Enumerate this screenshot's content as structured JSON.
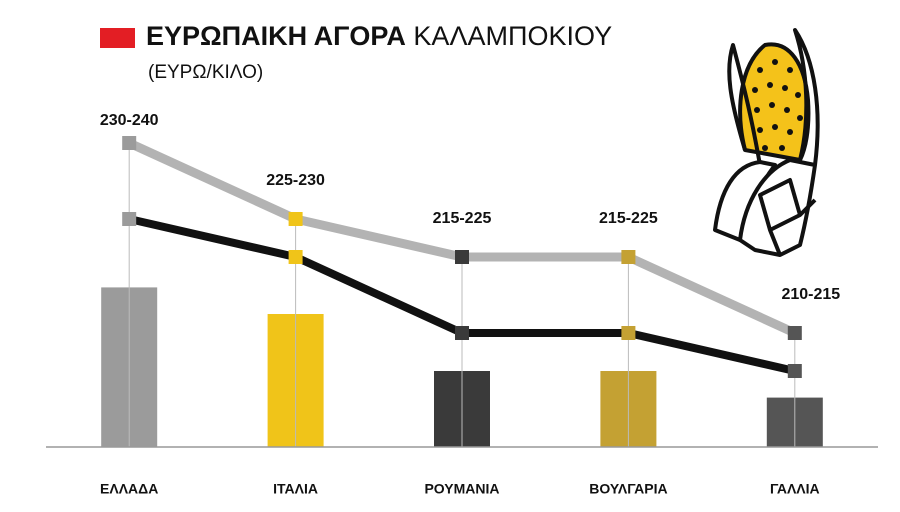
{
  "chart_data": {
    "type": "range-line",
    "title": [
      "ΕΥΡΩΠΑΙΚΗ ΑΓΟΡΑ",
      "ΚΑΛΑΜΠΟΚΙΟΥ"
    ],
    "subtitle": "(ΕΥΡΩ/ΚΙΛΟ)",
    "categories": [
      "ΕΛΛΑΔΑ",
      "ΙΤΑΛΙΑ",
      "ΡΟΥΜΑΝΙΑ",
      "ΒΟΥΛΓΑΡΙΑ",
      "ΓΑΛΛΙΑ"
    ],
    "colors": [
      "#9b9b9b",
      "#f0c419",
      "#3a3a3a",
      "#c4a133",
      "#555555"
    ],
    "series": [
      {
        "color": "#b3b3b3",
        "values": [
          240,
          230,
          225,
          225,
          215
        ],
        "value_labels": [
          "230-240",
          "225-230",
          "215-225",
          "215-225",
          "210-215"
        ]
      },
      {
        "color": "#111111",
        "values": [
          230,
          225,
          215,
          215,
          210
        ]
      }
    ],
    "bars": {
      "values": [
        221,
        217.5,
        210,
        210,
        206.5
      ]
    },
    "ylim": [
      200,
      250
    ]
  }
}
